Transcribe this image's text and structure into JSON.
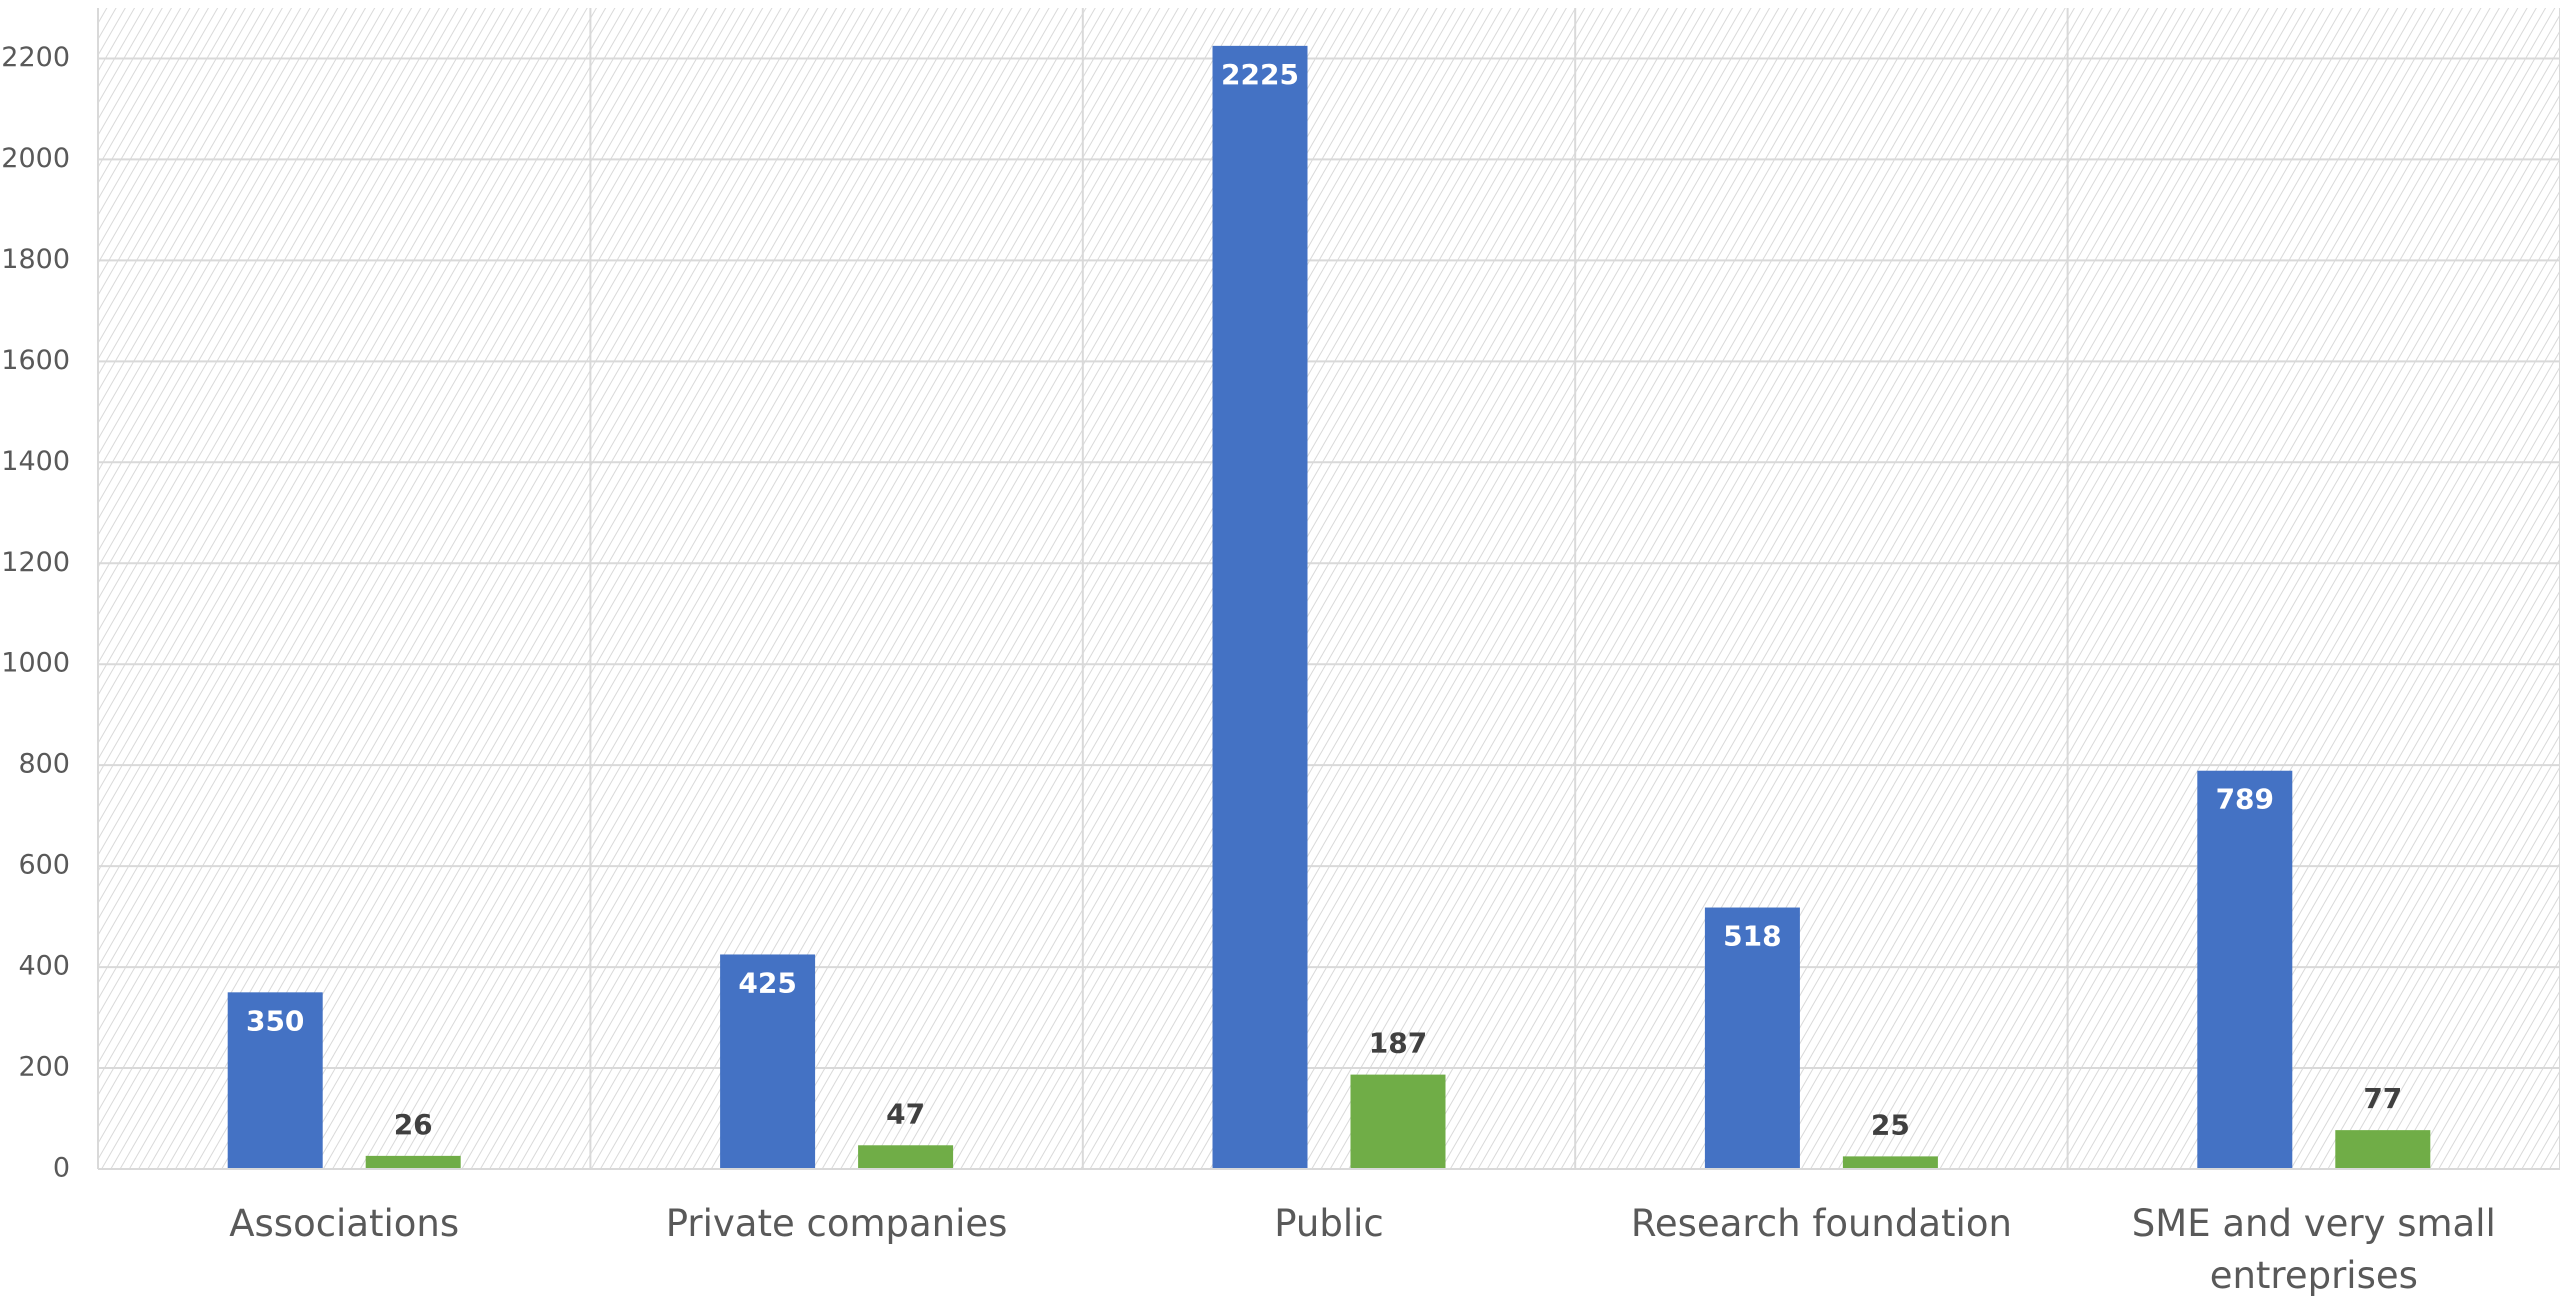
{
  "chart_data": {
    "type": "bar",
    "categories": [
      "Associations",
      "Private companies",
      "Public",
      "Research foundation",
      "SME and very small entreprises"
    ],
    "series": [
      {
        "color": "#4472c4",
        "values": [
          350,
          425,
          2225,
          518,
          789
        ]
      },
      {
        "color": "#70ad47",
        "values": [
          26,
          47,
          187,
          25,
          77
        ]
      }
    ],
    "ylim": [
      0,
      2300
    ],
    "yticks": [
      0,
      200,
      400,
      600,
      800,
      1000,
      1200,
      1400,
      1600,
      1800,
      2000,
      2200
    ],
    "grid": true
  }
}
